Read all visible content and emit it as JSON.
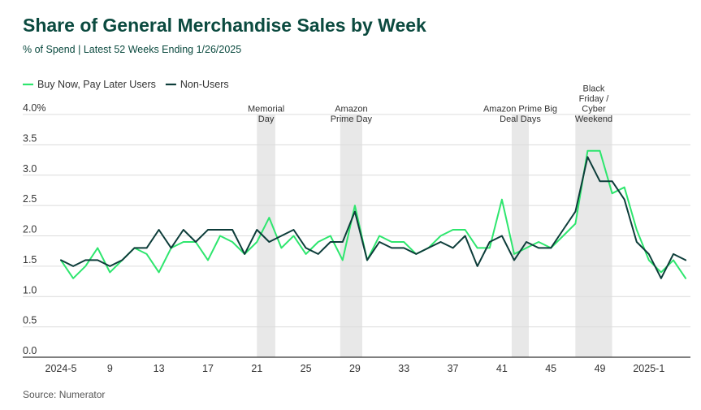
{
  "title": "Share of General Merchandise Sales by Week",
  "subtitle": "% of Spend | Latest 52 Weeks Ending 1/26/2025",
  "source": "Source: Numerator",
  "chart_data": {
    "type": "line",
    "x_tick_labels": [
      "2024-5",
      "9",
      "13",
      "17",
      "21",
      "25",
      "29",
      "33",
      "37",
      "41",
      "45",
      "49",
      "2025-1"
    ],
    "y_tick_labels": [
      "0.0",
      "0.5",
      "1.0",
      "1.5",
      "2.0",
      "2.5",
      "3.0",
      "3.5",
      "4.0%"
    ],
    "ylim": [
      0,
      4
    ],
    "grid": true,
    "legend_position": "top-left",
    "series": [
      {
        "name": "Buy Now, Pay Later Users",
        "color": "#2ee66e",
        "values": [
          1.6,
          1.3,
          1.5,
          1.8,
          1.4,
          1.6,
          1.8,
          1.7,
          1.4,
          1.8,
          1.9,
          1.9,
          1.6,
          2.0,
          1.9,
          1.7,
          1.9,
          2.3,
          1.8,
          2.0,
          1.7,
          1.9,
          2.0,
          1.6,
          2.5,
          1.6,
          2.0,
          1.9,
          1.9,
          1.7,
          1.8,
          2.0,
          2.1,
          2.1,
          1.8,
          1.8,
          2.6,
          1.7,
          1.8,
          1.9,
          1.8,
          2.0,
          2.2,
          3.4,
          3.4,
          2.7,
          2.8,
          2.1,
          1.6,
          1.4,
          1.6,
          1.3
        ]
      },
      {
        "name": "Non-Users",
        "color": "#0d3d3a",
        "values": [
          1.6,
          1.5,
          1.6,
          1.6,
          1.5,
          1.6,
          1.8,
          1.8,
          2.1,
          1.8,
          2.1,
          1.9,
          2.1,
          2.1,
          2.1,
          1.7,
          2.1,
          1.9,
          2.0,
          2.1,
          1.8,
          1.7,
          1.9,
          1.9,
          2.4,
          1.6,
          1.9,
          1.8,
          1.8,
          1.7,
          1.8,
          1.9,
          1.8,
          2.0,
          1.5,
          1.9,
          2.0,
          1.6,
          1.9,
          1.8,
          1.8,
          2.1,
          2.4,
          3.3,
          2.9,
          2.9,
          2.6,
          1.9,
          1.7,
          1.3,
          1.7,
          1.6
        ]
      }
    ],
    "annotations": [
      {
        "label": [
          "Memorial",
          "Day"
        ],
        "start": 16,
        "end": 17.5
      },
      {
        "label": [
          "Amazon",
          "Prime Day"
        ],
        "start": 22.8,
        "end": 24.6
      },
      {
        "label": [
          "Amazon Prime Big",
          "Deal Days"
        ],
        "start": 36.8,
        "end": 38.2
      },
      {
        "label": [
          "Black",
          "Friday /",
          "Cyber",
          "Weekend"
        ],
        "start": 42,
        "end": 45
      }
    ],
    "shade_color": "#e8e8e8"
  }
}
